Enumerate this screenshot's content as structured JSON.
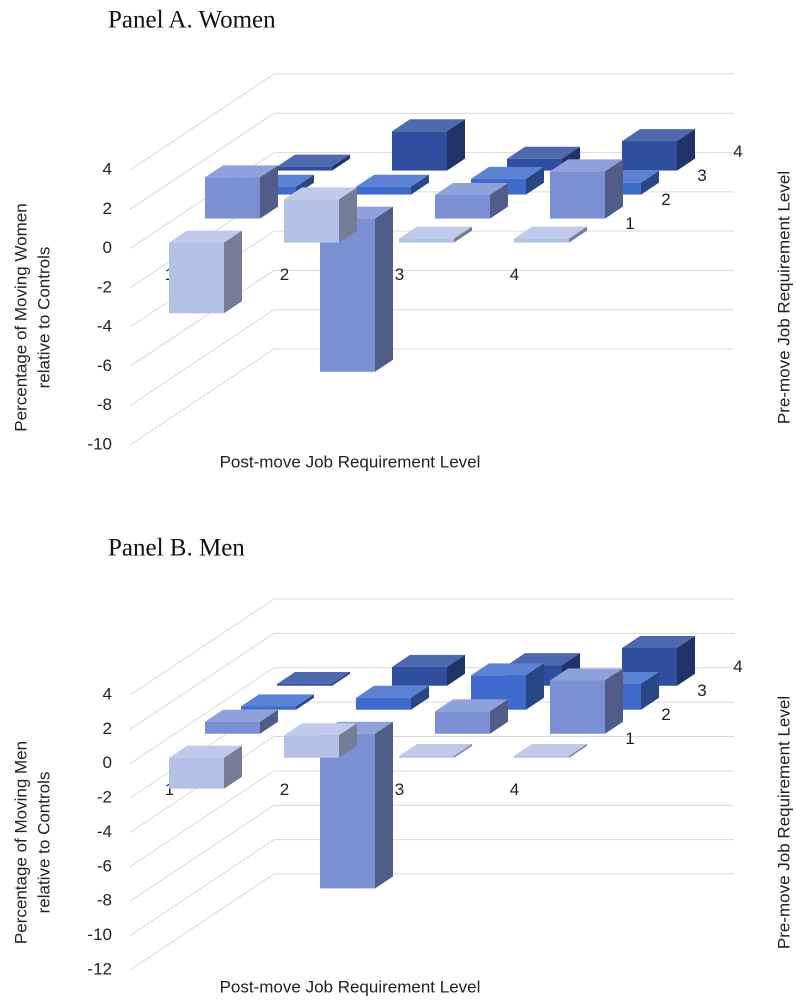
{
  "chart_data": [
    {
      "type": "bar3d",
      "title": "Panel A. Women",
      "y_label": [
        "Percentage of Moving Women",
        "relative to Controls"
      ],
      "x_label": "Post-move Job Requirement Level",
      "z_label": "Pre-move Job Requirement Level",
      "categories": [
        "1",
        "2",
        "3",
        "4"
      ],
      "series": [
        {
          "name": "1",
          "color": "#b4c1e6",
          "values": [
            -3.6,
            2.2,
            0.2,
            0.2
          ]
        },
        {
          "name": "2",
          "color": "#7b8fd3",
          "values": [
            2.1,
            -7.8,
            1.2,
            2.4
          ]
        },
        {
          "name": "3",
          "color": "#3f6ccc",
          "values": [
            0.4,
            0.4,
            0.8,
            0.6
          ]
        },
        {
          "name": "4",
          "color": "#2f4f9e",
          "values": [
            0.2,
            2.0,
            0.6,
            1.5
          ]
        }
      ],
      "ylim": [
        -10,
        4
      ],
      "yticks": [
        -10,
        -8,
        -6,
        -4,
        -2,
        0,
        2,
        4
      ],
      "grid": true
    },
    {
      "type": "bar3d",
      "title": "Panel B. Men",
      "y_label": [
        "Percentage of Moving Men",
        "relative to Controls"
      ],
      "x_label": "Post-move Job Requirement Level",
      "z_label": "Pre-move Job Requirement Level",
      "categories": [
        "1",
        "2",
        "3",
        "4"
      ],
      "series": [
        {
          "name": "1",
          "color": "#b4c1e6",
          "values": [
            -1.8,
            1.3,
            0.1,
            0.1
          ]
        },
        {
          "name": "2",
          "color": "#7b8fd3",
          "values": [
            0.7,
            -9.0,
            1.3,
            3.1
          ]
        },
        {
          "name": "3",
          "color": "#3f6ccc",
          "values": [
            0.2,
            0.7,
            2.0,
            1.5
          ]
        },
        {
          "name": "4",
          "color": "#2f4f9e",
          "values": [
            0.1,
            1.1,
            1.2,
            2.2
          ]
        }
      ],
      "ylim": [
        -12,
        4
      ],
      "yticks": [
        -12,
        -10,
        -8,
        -6,
        -4,
        -2,
        0,
        2,
        4
      ],
      "grid": true
    }
  ]
}
